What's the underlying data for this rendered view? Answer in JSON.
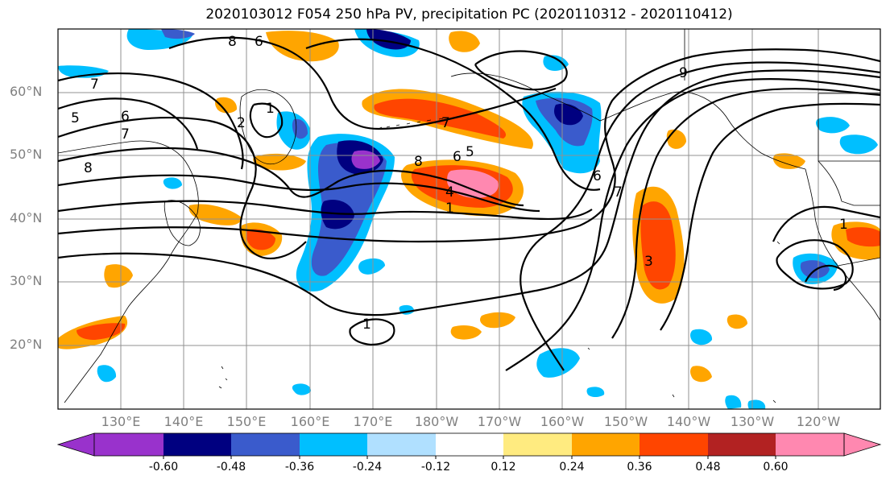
{
  "title": "2020103012 F054 250 hPa PV, precipitation PC (2020110312 - 2020110412)",
  "map": {
    "lat_labels": [
      "60°N",
      "50°N",
      "40°N",
      "30°N",
      "20°N"
    ],
    "lon_labels": [
      "130°E",
      "140°E",
      "150°E",
      "160°E",
      "170°E",
      "180°W",
      "170°W",
      "160°W",
      "150°W",
      "140°W",
      "130°W",
      "120°W"
    ],
    "contour_labels": [
      "8",
      "6",
      "7",
      "5",
      "6",
      "7",
      "8",
      "2",
      "1",
      "7",
      "8",
      "6",
      "5",
      "4",
      "1",
      "9",
      "6",
      "7",
      "3",
      "1",
      "1"
    ]
  },
  "colorbar": {
    "levels": [
      "-0.60",
      "-0.48",
      "-0.36",
      "-0.24",
      "-0.12",
      "0.12",
      "0.24",
      "0.36",
      "0.48",
      "0.60"
    ],
    "colors": [
      "#9932cc",
      "#000080",
      "#3a5bcc",
      "#00bfff",
      "#b0e0ff",
      "#ffffff",
      "#ffeb80",
      "#ffa500",
      "#ff4500",
      "#b22222",
      "#ff88b0"
    ]
  },
  "colors": {
    "grid": "#909090",
    "contour": "#000000",
    "coast": "#000000",
    "label_gray": "#808080"
  }
}
